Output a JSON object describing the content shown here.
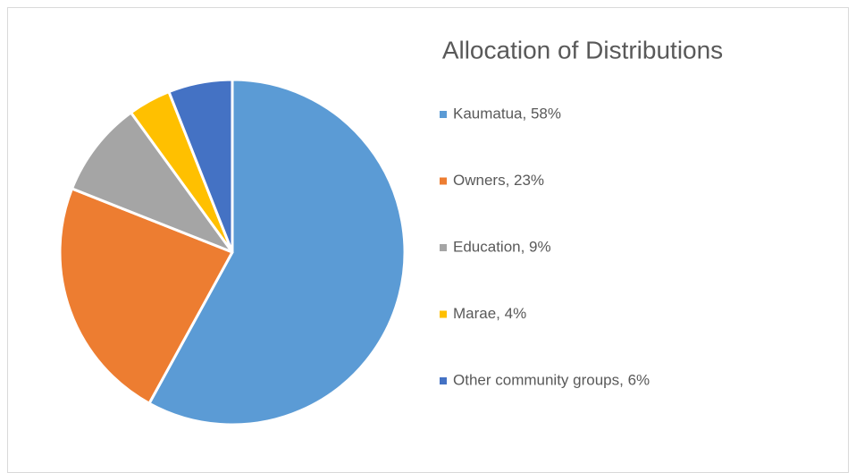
{
  "chart_data": {
    "type": "pie",
    "title": "Allocation of Distributions",
    "categories": [
      "Kaumatua, 58%",
      "Owners, 23%",
      "Education, 9%",
      "Marae, 4%",
      "Other community groups, 6%"
    ],
    "values": [
      58,
      23,
      9,
      4,
      6
    ],
    "colors": [
      "#5b9bd5",
      "#ed7d31",
      "#a5a5a5",
      "#ffc000",
      "#4472c4"
    ],
    "legend": "right"
  }
}
